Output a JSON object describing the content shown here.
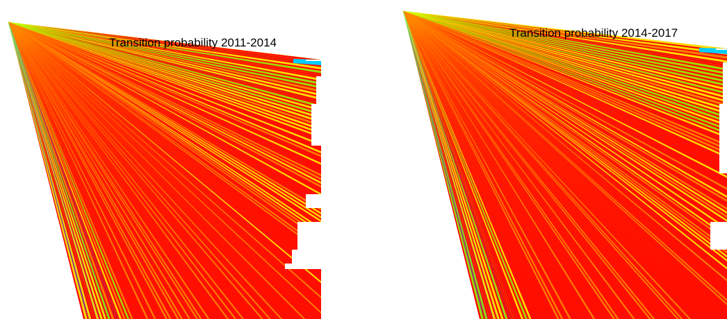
{
  "chart_data": [
    {
      "type": "heatmap",
      "title": "Transition probability 2011-2014",
      "grid": false,
      "legend": "none",
      "colors": {
        "high": "#ff0000",
        "upper_mid": "#ff8800",
        "mid": "#ffff00",
        "lower_mid": "#88ff00",
        "low": "#00ccff",
        "lowest": "#3355ff"
      }
    },
    {
      "type": "heatmap",
      "title": "Transition probability 2014-2017",
      "grid": false,
      "legend": "none",
      "colors": {
        "high": "#ff0000",
        "upper_mid": "#ff8800",
        "mid": "#ffff00",
        "lower_mid": "#88ff00",
        "low": "#00ccff",
        "lowest": "#3355ff"
      }
    }
  ]
}
